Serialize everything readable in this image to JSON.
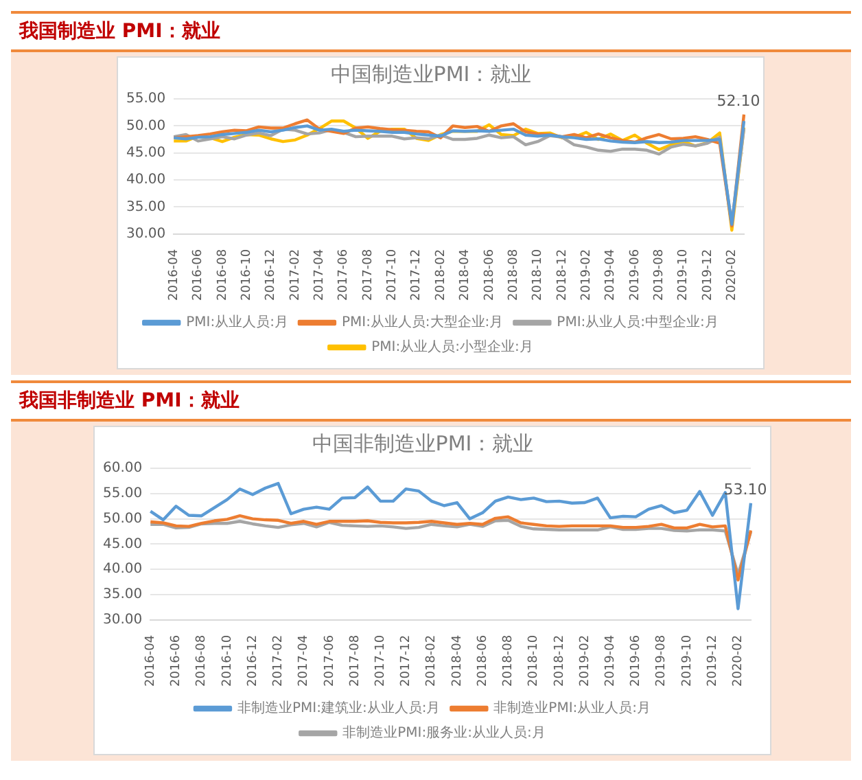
{
  "chart_data": [
    {
      "type": "line",
      "title": "我国制造业 PMI：就业",
      "subtitle": "中国制造业PMI：就业",
      "categories": [
        "2016-04",
        null,
        "2016-06",
        null,
        "2016-08",
        null,
        "2016-10",
        null,
        "2016-12",
        null,
        "2017-02",
        null,
        "2017-04",
        null,
        "2017-06",
        null,
        "2017-08",
        null,
        "2017-10",
        null,
        "2017-12",
        null,
        "2018-02",
        null,
        "2018-04",
        null,
        "2018-06",
        null,
        "2018-08",
        null,
        "2018-10",
        null,
        "2018-12",
        null,
        "2019-02",
        null,
        "2019-04",
        null,
        "2019-06",
        null,
        "2019-08",
        null,
        "2019-10",
        null,
        "2019-12",
        null,
        "2020-02",
        null
      ],
      "series": [
        {
          "name": "PMI:从业人员:月",
          "color": "#5b9bd5",
          "values": [
            47.8,
            47.6,
            47.9,
            48.0,
            48.4,
            48.6,
            48.8,
            49.2,
            48.9,
            49.2,
            49.7,
            50.0,
            49.2,
            49.4,
            49.0,
            49.2,
            49.1,
            49.0,
            48.8,
            48.8,
            48.5,
            48.3,
            48.1,
            49.1,
            49.0,
            49.1,
            49.0,
            49.2,
            49.4,
            48.3,
            48.1,
            48.3,
            48.0,
            47.8,
            47.5,
            47.6,
            47.2,
            47.0,
            46.9,
            47.1,
            46.9,
            47.0,
            47.3,
            47.3,
            47.3,
            47.5,
            31.8,
            50.9
          ]
        },
        {
          "name": "PMI:从业人员:大型企业:月",
          "color": "#ed7d31",
          "values": [
            47.8,
            48.0,
            48.2,
            48.5,
            48.9,
            49.2,
            49.1,
            49.8,
            49.6,
            49.6,
            50.4,
            51.1,
            49.4,
            49.0,
            48.6,
            49.6,
            49.8,
            49.5,
            49.3,
            49.2,
            49.0,
            48.9,
            47.8,
            50.0,
            49.7,
            49.9,
            49.0,
            50.0,
            50.4,
            48.9,
            48.5,
            48.4,
            48.0,
            48.4,
            47.8,
            48.5,
            47.8,
            47.3,
            47.0,
            47.8,
            48.4,
            47.6,
            47.7,
            48.0,
            47.5,
            46.8,
            31.5,
            52.1
          ],
          "value_labels": [
            null,
            null,
            null,
            null,
            null,
            null,
            null,
            null,
            null,
            null,
            null,
            null,
            null,
            null,
            null,
            null,
            null,
            null,
            null,
            null,
            null,
            null,
            null,
            null,
            null,
            null,
            null,
            null,
            null,
            null,
            null,
            null,
            null,
            null,
            null,
            null,
            null,
            null,
            null,
            null,
            null,
            null,
            null,
            null,
            null,
            null,
            null,
            "52.10"
          ]
        },
        {
          "name": "PMI:从业人员:中型企业:月",
          "color": "#a5a5a5",
          "values": [
            48.0,
            48.4,
            47.2,
            47.6,
            48.0,
            47.6,
            48.3,
            48.7,
            48.2,
            49.4,
            49.2,
            48.5,
            48.7,
            49.3,
            48.8,
            48.0,
            48.1,
            48.1,
            48.1,
            47.6,
            47.8,
            47.6,
            48.3,
            47.5,
            47.5,
            47.7,
            48.3,
            47.8,
            48.0,
            46.5,
            47.1,
            48.2,
            47.9,
            46.5,
            46.1,
            45.5,
            45.3,
            45.7,
            45.7,
            45.5,
            44.8,
            46.1,
            46.6,
            46.3,
            46.8,
            47.9,
            31.5,
            49.5
          ]
        },
        {
          "name": "PMI:从业人员:小型企业:月",
          "color": "#ffc000",
          "values": [
            47.2,
            47.2,
            48.1,
            47.8,
            47.1,
            47.9,
            48.4,
            48.3,
            47.6,
            47.1,
            47.4,
            48.3,
            49.5,
            50.9,
            50.9,
            49.6,
            47.7,
            49.0,
            49.4,
            49.4,
            47.7,
            47.3,
            48.4,
            49.0,
            49.0,
            49.0,
            50.2,
            48.4,
            48.2,
            49.4,
            48.6,
            48.7,
            47.8,
            47.9,
            48.8,
            47.5,
            48.5,
            47.3,
            48.3,
            46.8,
            45.6,
            46.5,
            47.1,
            46.3,
            46.9,
            48.7,
            30.7,
            49.7
          ]
        }
      ],
      "ylim": [
        30,
        55
      ],
      "yticks": [
        {
          "value": 30,
          "label": "30.00"
        },
        {
          "value": 35,
          "label": "35.00"
        },
        {
          "value": 40,
          "label": "40.00"
        },
        {
          "value": 45,
          "label": "45.00"
        },
        {
          "value": 50,
          "label": "50.00"
        },
        {
          "value": 55,
          "label": "55.00"
        }
      ],
      "grid": "y",
      "legend": "bottom",
      "line_style": "solid"
    },
    {
      "type": "line",
      "title": "我国非制造业 PMI：就业",
      "subtitle": "中国非制造业PMI：就业",
      "categories": [
        "2016-04",
        null,
        "2016-06",
        null,
        "2016-08",
        null,
        "2016-10",
        null,
        "2016-12",
        null,
        "2017-02",
        null,
        "2017-04",
        null,
        "2017-06",
        null,
        "2017-08",
        null,
        "2017-10",
        null,
        "2017-12",
        null,
        "2018-02",
        null,
        "2018-04",
        null,
        "2018-06",
        null,
        "2018-08",
        null,
        "2018-10",
        null,
        "2018-12",
        null,
        "2019-02",
        null,
        "2019-04",
        null,
        "2019-06",
        null,
        "2019-08",
        null,
        "2019-10",
        null,
        "2019-12",
        null,
        "2020-02",
        null
      ],
      "series": [
        {
          "name": "非制造业PMI:建筑业:从业人员:月",
          "color": "#5b9bd5",
          "values": [
            51.5,
            49.8,
            52.5,
            50.7,
            50.6,
            52.2,
            53.8,
            55.9,
            54.8,
            56.1,
            57.0,
            51.0,
            51.9,
            52.3,
            51.9,
            54.1,
            54.2,
            56.3,
            53.5,
            53.5,
            55.9,
            55.5,
            53.5,
            52.6,
            53.2,
            50.0,
            51.2,
            53.5,
            54.3,
            53.8,
            54.1,
            53.4,
            53.5,
            53.1,
            53.2,
            54.1,
            50.2,
            50.5,
            50.4,
            51.9,
            52.6,
            51.2,
            51.7,
            55.4,
            50.7,
            55.2,
            32.2,
            53.1
          ],
          "value_labels": [
            null,
            null,
            null,
            null,
            null,
            null,
            null,
            null,
            null,
            null,
            null,
            null,
            null,
            null,
            null,
            null,
            null,
            null,
            null,
            null,
            null,
            null,
            null,
            null,
            null,
            null,
            null,
            null,
            null,
            null,
            null,
            null,
            null,
            null,
            null,
            null,
            null,
            null,
            null,
            null,
            null,
            null,
            null,
            null,
            null,
            null,
            null,
            "53.10"
          ]
        },
        {
          "name": "非制造业PMI:从业人员:月",
          "color": "#ed7d31",
          "values": [
            49.4,
            49.2,
            48.6,
            48.5,
            49.1,
            49.6,
            49.9,
            50.6,
            50.0,
            49.8,
            49.7,
            49.1,
            49.5,
            48.9,
            49.5,
            49.5,
            49.5,
            49.6,
            49.3,
            49.2,
            49.2,
            49.3,
            49.5,
            49.2,
            48.9,
            49.1,
            48.9,
            50.1,
            50.4,
            49.2,
            48.9,
            48.6,
            48.5,
            48.6,
            48.6,
            48.6,
            48.6,
            48.3,
            48.3,
            48.5,
            48.9,
            48.2,
            48.2,
            48.9,
            48.4,
            48.6,
            37.9,
            47.7
          ]
        },
        {
          "name": "非制造业PMI:服务业:从业人员:月",
          "color": "#a5a5a5",
          "values": [
            48.9,
            48.9,
            48.2,
            48.3,
            49.0,
            49.1,
            49.1,
            49.5,
            49.0,
            48.6,
            48.3,
            48.8,
            49.1,
            48.4,
            49.3,
            48.7,
            48.6,
            48.5,
            48.6,
            48.4,
            48.1,
            48.3,
            48.9,
            48.6,
            48.4,
            48.9,
            48.5,
            49.6,
            49.7,
            48.5,
            48.0,
            47.9,
            47.8,
            47.8,
            47.8,
            47.8,
            48.4,
            47.9,
            47.9,
            48.1,
            48.1,
            47.7,
            47.6,
            47.8,
            47.8,
            47.6,
            39.0,
            47.4
          ]
        }
      ],
      "ylim": [
        30,
        60
      ],
      "yticks": [
        {
          "value": 30,
          "label": "30.00"
        },
        {
          "value": 35,
          "label": "35.00"
        },
        {
          "value": 40,
          "label": "40.00"
        },
        {
          "value": 45,
          "label": "45.00"
        },
        {
          "value": 50,
          "label": "50.00"
        },
        {
          "value": 55,
          "label": "55.00"
        },
        {
          "value": 60,
          "label": "60.00"
        }
      ],
      "grid": "y",
      "legend": "bottom",
      "line_style": "solid"
    }
  ]
}
